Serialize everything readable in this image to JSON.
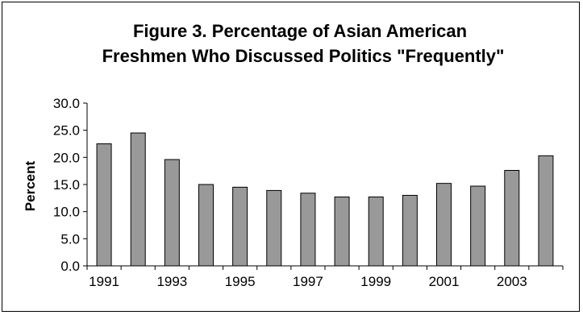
{
  "chart_data": {
    "type": "bar",
    "title": "Figure 3. Percentage of Asian American Freshmen Who Discussed Politics \"Frequently\"",
    "title_lines": [
      "Figure 3. Percentage of Asian American",
      "Freshmen Who Discussed Politics \"Frequently\""
    ],
    "xlabel": "",
    "ylabel": "Percent",
    "ylim": [
      0,
      30
    ],
    "yticks": [
      "0.0",
      "5.0",
      "10.0",
      "15.0",
      "20.0",
      "25.0",
      "30.0"
    ],
    "categories": [
      "1991",
      "1992",
      "1993",
      "1994",
      "1995",
      "1996",
      "1997",
      "1998",
      "1999",
      "2000",
      "2001",
      "2002",
      "2003",
      "2004"
    ],
    "xtick_labels": [
      "1991",
      "1993",
      "1995",
      "1997",
      "1999",
      "2001",
      "2003"
    ],
    "values": [
      22.5,
      24.5,
      19.6,
      15.0,
      14.5,
      13.9,
      13.4,
      12.7,
      12.7,
      13.0,
      15.2,
      14.7,
      17.6,
      20.3
    ],
    "grid": false,
    "legend": "none",
    "colors": {
      "bar_fill": "#999999",
      "bar_stroke": "#000000"
    }
  }
}
